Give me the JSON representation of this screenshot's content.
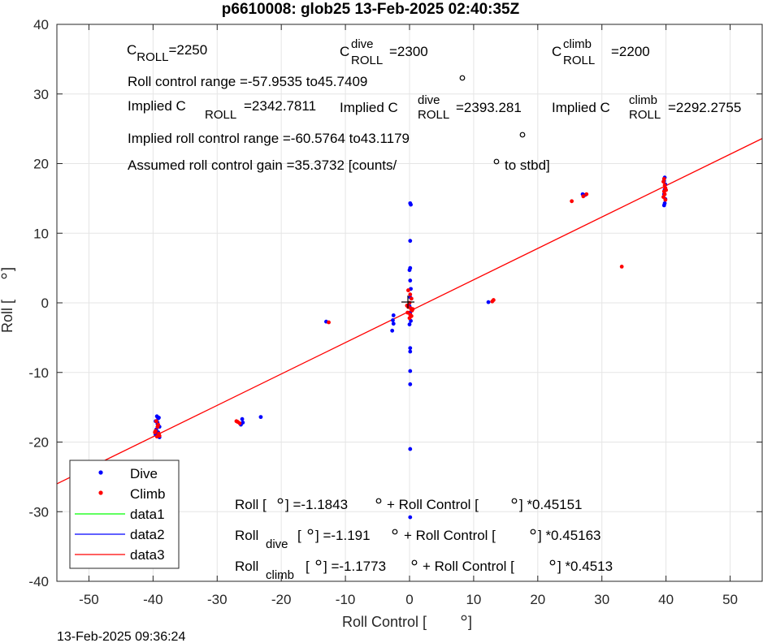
{
  "title": "p6610008: glob25 13-Feb-2025 02:40:35Z",
  "timestamp": "13-Feb-2025 09:36:24",
  "colors": {
    "dive": "#0000ff",
    "climb": "#ff0000",
    "data1": "#00ff00",
    "data2": "#0000ff",
    "data3": "#ff0000",
    "grid": "#e5e5e5",
    "axis": "#262626"
  },
  "annotations": {
    "c_roll": "C",
    "c_roll_sub": "ROLL",
    "c_roll_val": "=2250",
    "c_dive": "C",
    "c_dive_sup": "dive",
    "c_dive_sub": "ROLL",
    "c_dive_val": "=2300",
    "c_climb": "C",
    "c_climb_sup": "climb",
    "c_climb_sub": "ROLL",
    "c_climb_val": "=2200",
    "range": "Roll control range =-57.9535 to45.7409",
    "implied1_a": "Implied C",
    "implied1_sub": "ROLL",
    "implied1_val": "=2342.7811",
    "implied2_a": "Implied C",
    "implied2_sup": "dive",
    "implied2_sub": "ROLL",
    "implied2_val": "=2393.281",
    "implied3_a": "Implied C",
    "implied3_sup": "climb",
    "implied3_sub": "ROLL",
    "implied3_val": "=2292.2755",
    "implied_range": "Implied roll control range =-60.5764 to43.1179",
    "gain_a": "Assumed roll control gain =35.3732 [counts/",
    "gain_b": "to stbd]",
    "fit1_a": "Roll [",
    "fit1_b": "] =-1.1843",
    "fit1_c": "+ Roll Control [",
    "fit1_d": "] *0.45151",
    "fit2_a": "Roll",
    "fit2_sub": "dive",
    "fit2_b": "[",
    "fit2_c": "] =-1.191",
    "fit2_d": "+ Roll Control [",
    "fit2_e": "] *0.45163",
    "fit3_a": "Roll",
    "fit3_sub": "climb",
    "fit3_b": "[",
    "fit3_c": "] =-1.1773",
    "fit3_d": "+ Roll Control [",
    "fit3_e": "] *0.4513"
  },
  "chart_data": {
    "type": "scatter",
    "title": "p6610008: glob25 13-Feb-2025 02:40:35Z",
    "xlabel": "Roll Control [",
    "ylabel": "Roll [",
    "xlim": [
      -55,
      55
    ],
    "ylim": [
      -40,
      40
    ],
    "xticks": [
      -50,
      -40,
      -30,
      -20,
      -10,
      0,
      10,
      20,
      30,
      40,
      50
    ],
    "yticks": [
      -40,
      -30,
      -20,
      -10,
      0,
      10,
      20,
      30,
      40
    ],
    "grid": true,
    "legend_position": "bottom-left",
    "legend": [
      "Dive",
      "Climb",
      "data1",
      "data2",
      "data3"
    ],
    "series": [
      {
        "name": "Dive",
        "marker": "dot",
        "points": [
          [
            -39.4,
            -16.3
          ],
          [
            -39.2,
            -16.6
          ],
          [
            -39.6,
            -17.0
          ],
          [
            -39.3,
            -17.4
          ],
          [
            -39.0,
            -17.8
          ],
          [
            -39.5,
            -18.2
          ],
          [
            -39.2,
            -18.6
          ],
          [
            -39.4,
            -19.0
          ],
          [
            -39.0,
            -19.3
          ],
          [
            -39.6,
            -18.9
          ],
          [
            -39.1,
            -16.5
          ],
          [
            -39.3,
            -17.2
          ],
          [
            -26.1,
            -16.7
          ],
          [
            -26.0,
            -17.2
          ],
          [
            -26.3,
            -17.5
          ],
          [
            -23.2,
            -16.4
          ],
          [
            -13.0,
            -2.7
          ],
          [
            -2.5,
            -1.8
          ],
          [
            -2.6,
            -2.5
          ],
          [
            -2.5,
            -3.0
          ],
          [
            -2.7,
            -4.0
          ],
          [
            0.1,
            14.3
          ],
          [
            0.2,
            14.1
          ],
          [
            0.1,
            8.9
          ],
          [
            0.1,
            5.0
          ],
          [
            0.0,
            4.7
          ],
          [
            0.1,
            3.2
          ],
          [
            0.2,
            2.0
          ],
          [
            0.1,
            0.8
          ],
          [
            0.0,
            -0.5
          ],
          [
            0.1,
            -1.5
          ],
          [
            0.2,
            -2.6
          ],
          [
            0.0,
            -3.1
          ],
          [
            0.1,
            -6.5
          ],
          [
            0.1,
            -7.0
          ],
          [
            0.1,
            -9.8
          ],
          [
            0.1,
            -11.7
          ],
          [
            0.1,
            -21.0
          ],
          [
            0.1,
            -30.8
          ],
          [
            12.3,
            0.1
          ],
          [
            27.0,
            15.6
          ],
          [
            27.4,
            15.5
          ],
          [
            39.8,
            18.0
          ],
          [
            39.7,
            17.5
          ],
          [
            39.9,
            17.0
          ],
          [
            39.8,
            16.3
          ],
          [
            39.7,
            15.6
          ],
          [
            39.9,
            14.9
          ],
          [
            39.8,
            14.3
          ],
          [
            39.7,
            14.0
          ]
        ]
      },
      {
        "name": "Climb",
        "marker": "dot",
        "points": [
          [
            -39.5,
            -17.0
          ],
          [
            -39.3,
            -17.8
          ],
          [
            -39.6,
            -18.4
          ],
          [
            -39.1,
            -18.8
          ],
          [
            -39.4,
            -19.2
          ],
          [
            -39.0,
            -19.1
          ],
          [
            -39.7,
            -18.6
          ],
          [
            -39.2,
            -17.5
          ],
          [
            -27.0,
            -17.0
          ],
          [
            -26.5,
            -17.3
          ],
          [
            -26.8,
            -17.1
          ],
          [
            -12.6,
            -2.8
          ],
          [
            -0.2,
            1.8
          ],
          [
            0.1,
            1.2
          ],
          [
            0.3,
            0.6
          ],
          [
            0.0,
            0.0
          ],
          [
            -0.4,
            -0.4
          ],
          [
            0.2,
            -0.8
          ],
          [
            0.4,
            -1.1
          ],
          [
            -0.3,
            -1.4
          ],
          [
            0.1,
            -1.7
          ],
          [
            0.3,
            -1.9
          ],
          [
            0.0,
            -2.2
          ],
          [
            -0.2,
            -0.6
          ],
          [
            0.5,
            -0.9
          ],
          [
            12.9,
            0.2
          ],
          [
            13.1,
            0.4
          ],
          [
            25.3,
            14.6
          ],
          [
            27.1,
            15.3
          ],
          [
            27.6,
            15.6
          ],
          [
            33.1,
            5.2
          ],
          [
            39.6,
            17.4
          ],
          [
            39.8,
            16.9
          ],
          [
            39.9,
            16.5
          ],
          [
            39.7,
            16.0
          ],
          [
            39.8,
            15.6
          ],
          [
            39.6,
            15.2
          ],
          [
            39.9,
            14.8
          ],
          [
            39.7,
            17.8
          ],
          [
            40.0,
            16.2
          ]
        ]
      },
      {
        "name": "data1",
        "points": []
      },
      {
        "name": "data2",
        "points": []
      },
      {
        "name": "data3",
        "type": "line",
        "points": [
          [
            -55,
            -26.0
          ],
          [
            55,
            23.6
          ]
        ]
      }
    ]
  }
}
